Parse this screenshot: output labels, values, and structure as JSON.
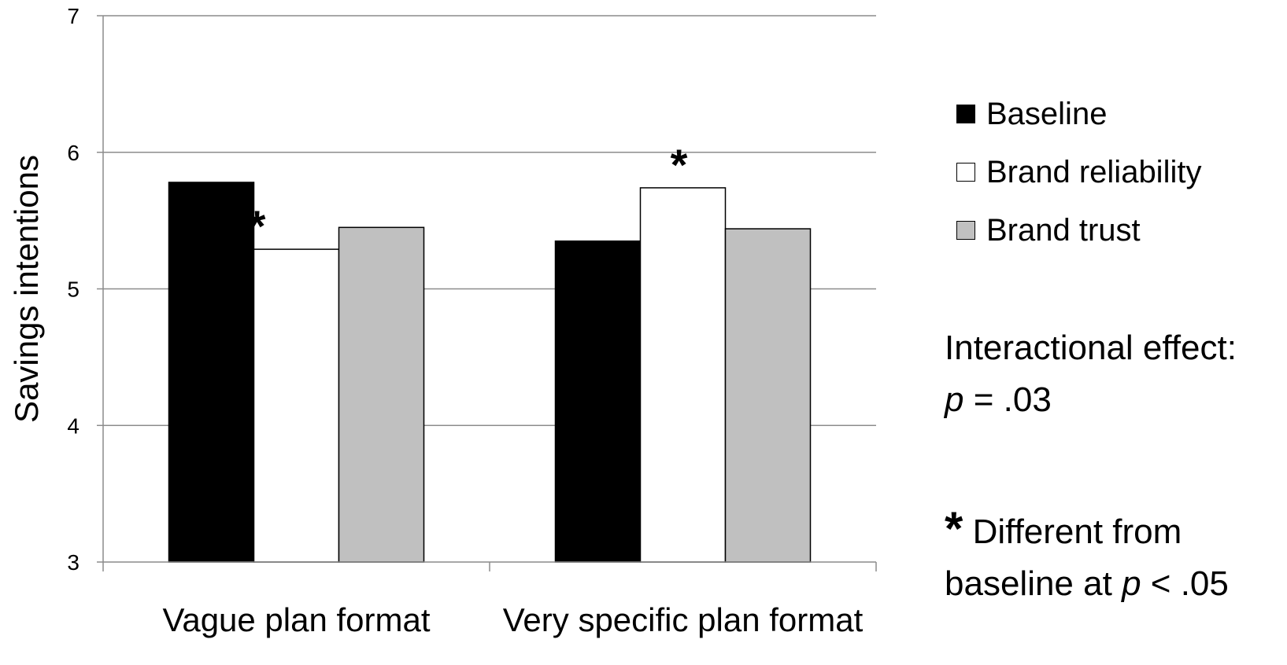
{
  "chart_data": {
    "type": "bar",
    "title": "",
    "xlabel": "",
    "ylabel": "Savings intentions",
    "ylim": [
      3,
      7
    ],
    "yticks": [
      "3",
      "4",
      "5",
      "6",
      "7"
    ],
    "categories": [
      "Vague plan format",
      "Very specific plan format"
    ],
    "series": [
      {
        "name": "Baseline",
        "values": [
          5.78,
          5.35
        ],
        "color": "#000000"
      },
      {
        "name": "Brand reliability",
        "values": [
          5.29,
          5.74
        ],
        "color": "#ffffff"
      },
      {
        "name": "Brand trust",
        "values": [
          5.45,
          5.44
        ],
        "color": "#c0c0c0"
      }
    ],
    "annotations": [
      {
        "text": "*",
        "category_index": 0,
        "series_index": 1
      },
      {
        "text": "*",
        "category_index": 1,
        "series_index": 1
      }
    ],
    "grid": true,
    "legend_position": "right"
  },
  "legend": {
    "items": [
      {
        "label": "Baseline",
        "color": "#000000"
      },
      {
        "label": "Brand reliability",
        "color": "#ffffff"
      },
      {
        "label": "Brand trust",
        "color": "#c0c0c0"
      }
    ]
  },
  "notes": {
    "interaction_line1": "Interactional effect:",
    "interaction_p": "p",
    "interaction_value": " = .03",
    "star": "*",
    "star_text": " Different from",
    "star_line2_prefix": "baseline at  ",
    "star_p": "p",
    "star_value": " <  .05"
  }
}
